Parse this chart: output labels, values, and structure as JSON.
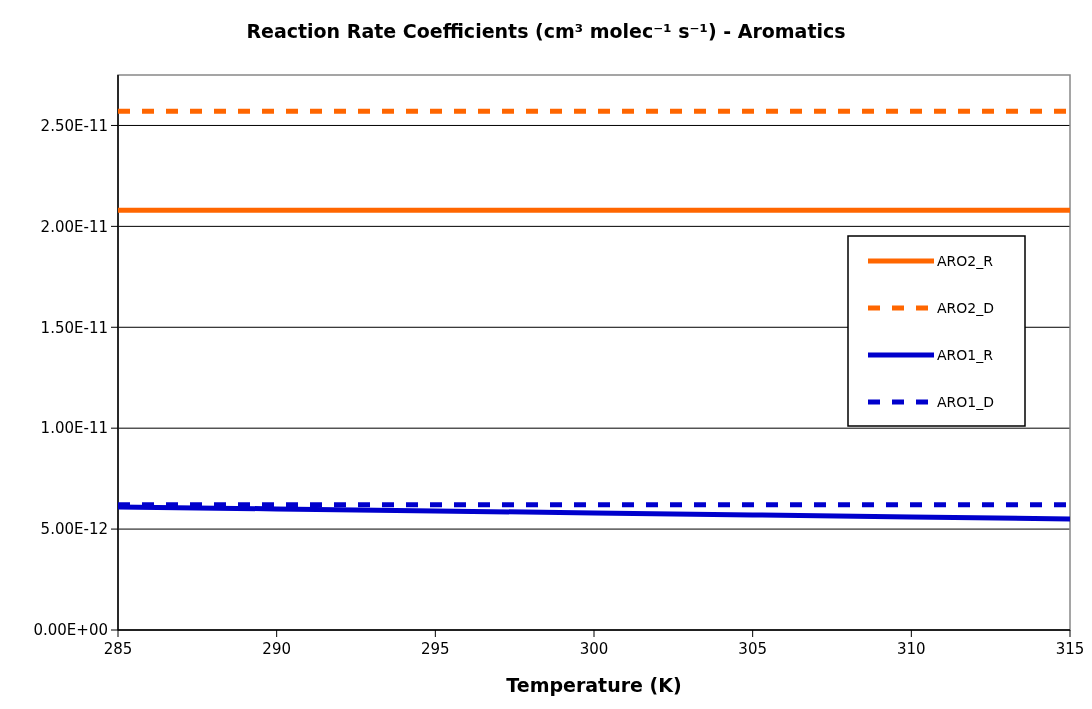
{
  "chart_data": {
    "type": "line",
    "title": "Reaction Rate Coefficients (cm³ molec⁻¹ s⁻¹) - Aromatics",
    "xlabel": "Temperature (K)",
    "x": [
      285,
      290,
      295,
      300,
      305,
      310,
      315
    ],
    "series": [
      {
        "name": "ARO2_R",
        "color": "#ff6600",
        "line_style": "solid",
        "values": [
          2.08e-11,
          2.08e-11,
          2.08e-11,
          2.08e-11,
          2.08e-11,
          2.08e-11,
          2.08e-11
        ]
      },
      {
        "name": "ARO2_D",
        "color": "#ff6600",
        "line_style": "dashed",
        "values": [
          2.57e-11,
          2.57e-11,
          2.57e-11,
          2.57e-11,
          2.57e-11,
          2.57e-11,
          2.57e-11
        ]
      },
      {
        "name": "ARO1_R",
        "color": "#0000cc",
        "line_style": "solid",
        "values": [
          6.1e-12,
          6e-12,
          5.9e-12,
          5.8e-12,
          5.7e-12,
          5.6e-12,
          5.5e-12
        ]
      },
      {
        "name": "ARO1_D",
        "color": "#0000cc",
        "line_style": "dashed",
        "values": [
          6.2e-12,
          6.2e-12,
          6.2e-12,
          6.2e-12,
          6.2e-12,
          6.2e-12,
          6.2e-12
        ]
      }
    ],
    "xlim": [
      285,
      315
    ],
    "xticks": [
      285,
      290,
      295,
      300,
      305,
      310,
      315
    ],
    "ylim": [
      0,
      2.75e-11
    ],
    "yticks": [
      {
        "value": 0,
        "label": "0.00E+00"
      },
      {
        "value": 5e-12,
        "label": "5.00E-12"
      },
      {
        "value": 1e-11,
        "label": "1.00E-11"
      },
      {
        "value": 1.5e-11,
        "label": "1.50E-11"
      },
      {
        "value": 2e-11,
        "label": "2.00E-11"
      },
      {
        "value": 2.5e-11,
        "label": "2.50E-11"
      }
    ],
    "grid": "y",
    "legend": "right"
  }
}
